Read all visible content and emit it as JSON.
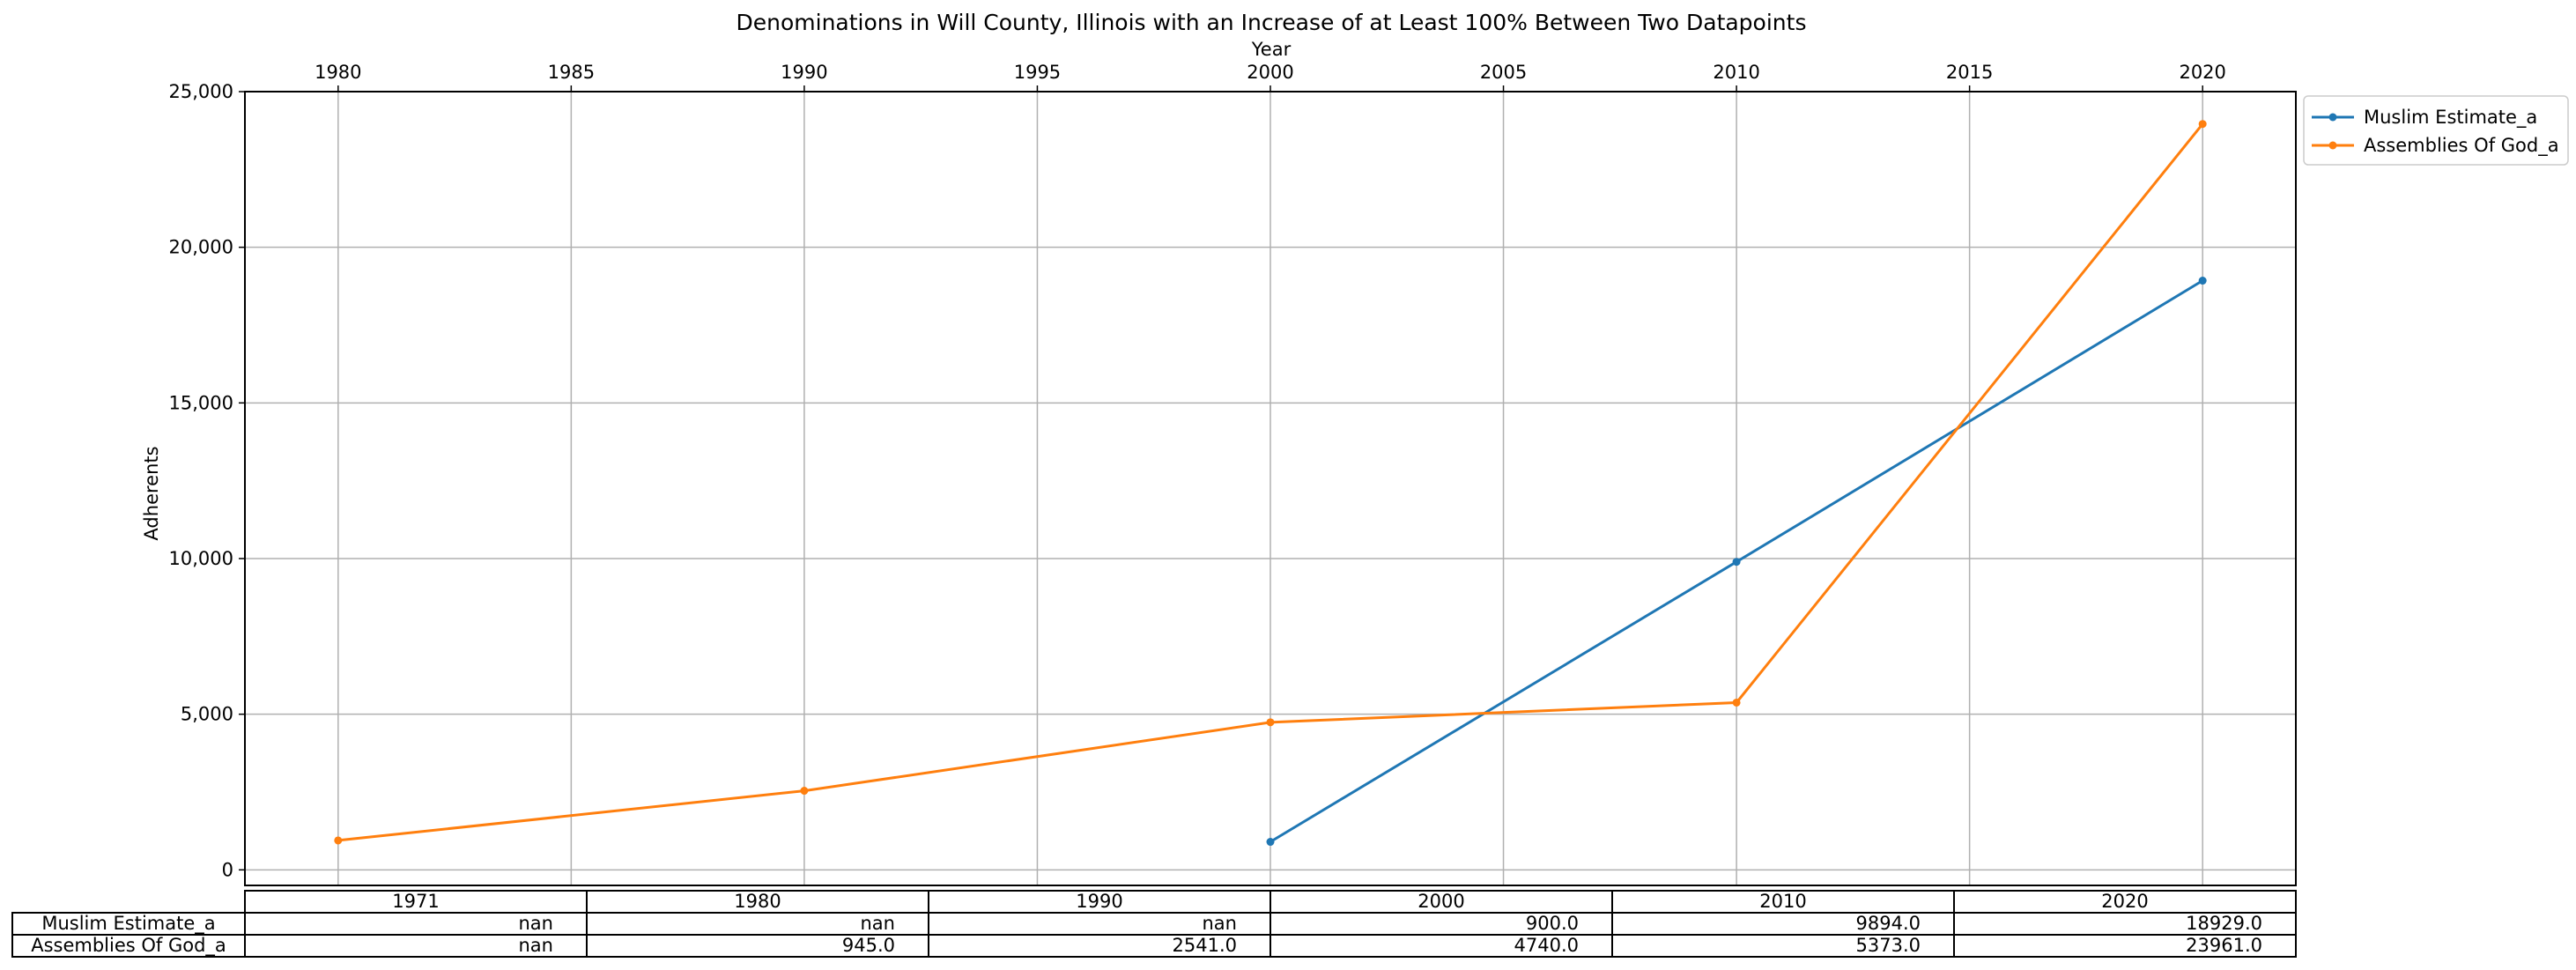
{
  "chart_data": {
    "type": "line",
    "title": "Denominations in Will County, Illinois with an Increase of at Least 100% Between Two Datapoints",
    "xlabel": "Year",
    "ylabel": "Adherents",
    "x_axis_position": "top",
    "xlim": [
      1978,
      2022
    ],
    "ylim": [
      -500,
      25000
    ],
    "xticks": [
      1980,
      1985,
      1990,
      1995,
      2000,
      2005,
      2010,
      2015,
      2020
    ],
    "xtick_labels": [
      "1980",
      "1985",
      "1990",
      "1995",
      "2000",
      "2005",
      "2010",
      "2015",
      "2020"
    ],
    "yticks": [
      0,
      5000,
      10000,
      15000,
      20000,
      25000
    ],
    "ytick_labels": [
      "0",
      "5,000",
      "10,000",
      "15,000",
      "20,000",
      "25,000"
    ],
    "grid": true,
    "legend_position": "outside-top-right",
    "series": [
      {
        "name": "Muslim Estimate_a",
        "color": "#1f77b4",
        "x": [
          2000,
          2010,
          2020
        ],
        "y": [
          900,
          9894,
          18929
        ]
      },
      {
        "name": "Assemblies Of God_a",
        "color": "#ff7f0e",
        "x": [
          1980,
          1990,
          2000,
          2010,
          2020
        ],
        "y": [
          945,
          2541,
          4740,
          5373,
          23961
        ]
      }
    ],
    "table": {
      "columns": [
        "1971",
        "1980",
        "1990",
        "2000",
        "2010",
        "2020"
      ],
      "rows": [
        {
          "label": "Muslim Estimate_a",
          "cells": [
            "nan",
            "nan",
            "nan",
            "900.0",
            "9894.0",
            "18929.0"
          ]
        },
        {
          "label": "Assemblies Of God_a",
          "cells": [
            "nan",
            "945.0",
            "2541.0",
            "4740.0",
            "5373.0",
            "23961.0"
          ]
        }
      ]
    }
  }
}
